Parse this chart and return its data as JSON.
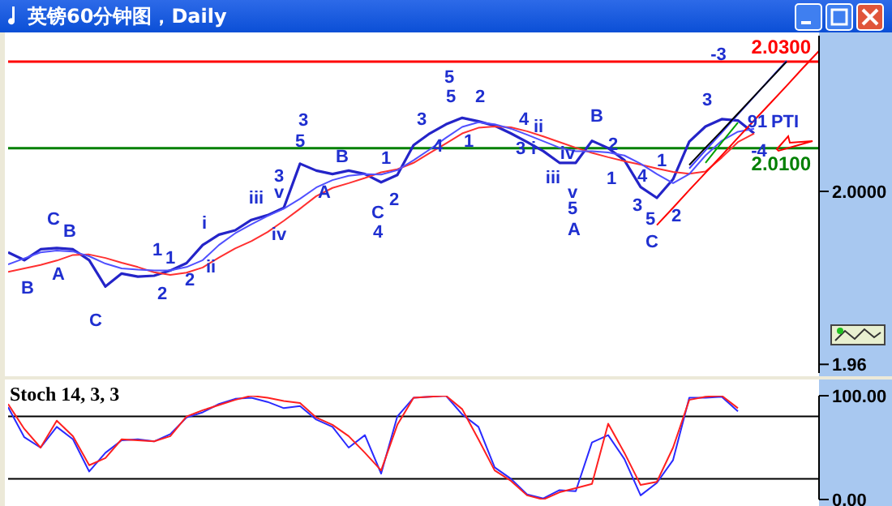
{
  "chart_data": [
    {
      "type": "line",
      "title": "英镑60分钟图，Daily",
      "categories": [
        null,
        null,
        null,
        null,
        null,
        null,
        null,
        null,
        null,
        null,
        null,
        null,
        null,
        null,
        null,
        null,
        null,
        null,
        null,
        null,
        null,
        null,
        null,
        null,
        null,
        null,
        null,
        null,
        null,
        null,
        null,
        null,
        null,
        null,
        null,
        null,
        null,
        null,
        null,
        null,
        null,
        null,
        null,
        null,
        null,
        null,
        null,
        null,
        null,
        null,
        null
      ],
      "ylim": [
        1.958,
        2.036
      ],
      "yticks": [
        {
          "value": 1.96,
          "label": "1.96"
        },
        {
          "value": 2,
          "label": "2.0000"
        }
      ],
      "tick_labels": "y",
      "series": [
        {
          "color": "#2424c8",
          "values": [
            1.9859,
            1.9841,
            1.9866,
            1.9869,
            1.9866,
            1.9841,
            1.978,
            1.981,
            1.9803,
            1.9805,
            1.9817,
            1.9834,
            1.9876,
            1.99,
            1.991,
            1.9934,
            1.9945,
            1.9962,
            2.0064,
            2.0048,
            2.004,
            2.0048,
            2.004,
            2.0021,
            2.0038,
            2.0107,
            2.0134,
            2.0155,
            2.017,
            2.0162,
            2.0152,
            2.0134,
            2.0114,
            2.0093,
            2.0066,
            2.0066,
            2.0117,
            2.01,
            2.0072,
            2.001,
            1.9985,
            2.0028,
            2.0115,
            2.015,
            2.0167,
            2.0164,
            2.0134,
            null,
            null,
            null,
            null
          ]
        },
        {
          "color": "#ff3030",
          "values": [
            1.9814,
            1.9822,
            1.983,
            1.984,
            1.9853,
            1.9854,
            1.9846,
            1.9835,
            1.9825,
            1.9813,
            1.9807,
            1.9812,
            1.9824,
            1.9847,
            1.9868,
            1.9885,
            1.9906,
            1.9932,
            1.996,
            1.9989,
            2.0008,
            2.0019,
            2.0031,
            2.0044,
            2.0051,
            2.0066,
            2.0089,
            2.0111,
            2.0134,
            2.0147,
            2.015,
            2.0148,
            2.0139,
            2.0127,
            2.0114,
            2.0101,
            2.0089,
            2.0079,
            2.007,
            2.0062,
            2.0053,
            2.0045,
            2.0041,
            2.0046,
            2.0078,
            2.0114,
            2.0134,
            null,
            null,
            null,
            null
          ]
        },
        {
          "color": "#5050ff",
          "values": [
            1.9831,
            1.9845,
            1.9859,
            1.9863,
            1.9861,
            1.985,
            1.9833,
            1.9822,
            1.9819,
            1.9817,
            1.9817,
            1.9825,
            1.9841,
            1.9876,
            1.9903,
            1.9924,
            1.9943,
            1.996,
            1.9983,
            2.0009,
            2.0026,
            2.0036,
            2.004,
            2.0039,
            2.0049,
            2.0072,
            2.0097,
            2.0124,
            2.0149,
            2.016,
            2.0155,
            2.0145,
            2.0131,
            2.0116,
            2.0101,
            2.0093,
            2.0093,
            2.009,
            2.0083,
            2.0064,
            2.004,
            2.0019,
            2.004,
            2.0083,
            2.0117,
            2.0138,
            2.0145,
            null,
            null,
            null,
            null
          ]
        },
        {
          "color": "#4040ff",
          "values": [
            null,
            null,
            null,
            null,
            null,
            null,
            null,
            null,
            null,
            null,
            null,
            null,
            null,
            null,
            null,
            null,
            null,
            null,
            null,
            null,
            null,
            null,
            null,
            null,
            null,
            null,
            null,
            null,
            null,
            null,
            null,
            null,
            null,
            null,
            null,
            null,
            null,
            null,
            null,
            null,
            null,
            null,
            2.0053,
            2.0095,
            2.0136,
            2.0178,
            2.0219,
            2.0261,
            2.0302,
            null,
            null
          ]
        },
        {
          "color": "#000000",
          "values": [
            null,
            null,
            null,
            null,
            null,
            null,
            null,
            null,
            null,
            null,
            null,
            null,
            null,
            null,
            null,
            null,
            null,
            null,
            null,
            null,
            null,
            null,
            null,
            null,
            null,
            null,
            null,
            null,
            null,
            null,
            null,
            null,
            null,
            null,
            null,
            null,
            null,
            null,
            null,
            null,
            null,
            null,
            2.0061,
            2.0101,
            2.014,
            2.018,
            2.022,
            2.026,
            2.03,
            null,
            null
          ]
        },
        {
          "color": "#ff0000",
          "values": [
            null,
            null,
            null,
            null,
            null,
            null,
            null,
            null,
            null,
            null,
            null,
            null,
            null,
            null,
            null,
            null,
            null,
            null,
            null,
            null,
            null,
            null,
            null,
            null,
            null,
            null,
            null,
            null,
            null,
            null,
            null,
            null,
            null,
            null,
            null,
            null,
            null,
            null,
            null,
            null,
            1.9922,
            1.9962,
            2.0003,
            2.0043,
            2.0083,
            2.0124,
            2.0164,
            2.0204,
            2.0244,
            2.0285,
            2.0325
          ]
        },
        {
          "color": "#00a000",
          "values": [
            null,
            null,
            null,
            null,
            null,
            null,
            null,
            null,
            null,
            null,
            null,
            null,
            null,
            null,
            null,
            null,
            null,
            null,
            null,
            null,
            null,
            null,
            null,
            null,
            null,
            null,
            null,
            null,
            null,
            null,
            null,
            null,
            null,
            null,
            null,
            null,
            null,
            null,
            null,
            null,
            null,
            null,
            null,
            2.0066,
            2.0113,
            2.0159,
            null,
            null,
            null,
            null,
            null
          ]
        }
      ],
      "ref_lines": [
        {
          "axis": "y",
          "value": 2.03,
          "label": "2.0300",
          "color": "#ff0000"
        },
        {
          "axis": "y",
          "value": 2.01,
          "label": "2.0100",
          "color": "#008000"
        }
      ],
      "annotations": [
        "C",
        "B",
        "A",
        "B",
        "C",
        "1",
        "2",
        "1",
        "2",
        "i",
        "ii",
        "iii",
        "3",
        "v",
        "iv",
        "3",
        "5",
        "B",
        "A",
        "C",
        "4",
        "1",
        "2",
        "3",
        "4",
        "5",
        "5",
        "2",
        "1",
        "4",
        "ii",
        "3",
        "i",
        "iv",
        "iii",
        "v",
        "5",
        "A",
        "B",
        "2",
        "1",
        "4",
        "1",
        "3",
        "5",
        "C",
        "2",
        "3",
        "-3",
        "91",
        "PTI",
        "-4"
      ]
    },
    {
      "type": "line",
      "title": "Stoch 14, 3, 3",
      "categories": [
        null,
        null,
        null,
        null,
        null,
        null,
        null,
        null,
        null,
        null,
        null,
        null,
        null,
        null,
        null,
        null,
        null,
        null,
        null,
        null,
        null,
        null,
        null,
        null,
        null,
        null,
        null,
        null,
        null,
        null,
        null,
        null,
        null,
        null,
        null,
        null,
        null,
        null,
        null,
        null,
        null,
        null,
        null,
        null,
        null,
        null,
        null,
        null,
        null,
        null,
        null
      ],
      "ylim": [
        0,
        100
      ],
      "yticks": [
        {
          "value": 0,
          "label": "0.00"
        },
        {
          "value": 100,
          "label": "100.00"
        }
      ],
      "tick_labels": "y",
      "series": [
        {
          "color": "#2a2aff",
          "values": [
            89,
            60,
            50,
            70,
            58,
            27,
            45,
            57,
            58,
            56,
            63,
            79,
            84,
            92,
            97,
            98,
            94,
            88,
            90,
            77,
            70,
            50,
            62,
            25,
            80,
            98,
            99,
            100,
            82,
            70,
            31,
            20,
            5,
            1,
            9,
            8,
            55,
            62,
            39,
            4,
            16,
            38,
            98,
            98,
            99,
            85,
            null,
            null,
            null,
            null,
            null
          ]
        },
        {
          "color": "#ff2020",
          "values": [
            92,
            68,
            50,
            76,
            61,
            33,
            40,
            58,
            57,
            56,
            61,
            80,
            86,
            91,
            96,
            100,
            98,
            95,
            93,
            79,
            72,
            61,
            45,
            28,
            72,
            98,
            99,
            100,
            87,
            58,
            28,
            18,
            4,
            0,
            7,
            11,
            15,
            73,
            45,
            14,
            17,
            50,
            96,
            99,
            100,
            88,
            null,
            null,
            null,
            null,
            null
          ]
        }
      ],
      "ref_lines": [
        {
          "axis": "y",
          "value": 80,
          "color": "#000000"
        },
        {
          "axis": "y",
          "value": 20,
          "color": "#000000"
        }
      ]
    }
  ]
}
